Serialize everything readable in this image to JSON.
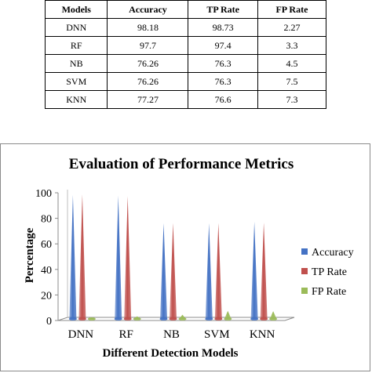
{
  "table": {
    "headers": [
      "Models",
      "Accuracy",
      "TP Rate",
      "FP Rate"
    ],
    "rows": [
      [
        "DNN",
        "98.18",
        "98.73",
        "2.27"
      ],
      [
        "RF",
        "97.7",
        "97.4",
        "3.3"
      ],
      [
        "NB",
        "76.26",
        "76.3",
        "4.5"
      ],
      [
        "SVM",
        "76.26",
        "76.3",
        "7.5"
      ],
      [
        "KNN",
        "77.27",
        "76.6",
        "7.3"
      ]
    ]
  },
  "chart_data": {
    "type": "bar",
    "title": "Evaluation of Performance Metrics",
    "xlabel": "Different Detection Models",
    "ylabel": "Percentage",
    "categories": [
      "DNN",
      "RF",
      "NB",
      "SVM",
      "KNN"
    ],
    "ylim": [
      0,
      100
    ],
    "yticks": [
      0,
      20,
      40,
      60,
      80,
      100
    ],
    "series": [
      {
        "name": "Accuracy",
        "values": [
          98.18,
          97.7,
          76.26,
          76.26,
          77.27
        ],
        "color": "#4472c4"
      },
      {
        "name": "TP Rate",
        "values": [
          98.73,
          97.4,
          76.3,
          76.3,
          76.6
        ],
        "color": "#c0504d"
      },
      {
        "name": "FP Rate",
        "values": [
          2.27,
          3.3,
          4.5,
          7.5,
          7.3
        ],
        "color": "#9bbb59"
      }
    ],
    "bar_shape": "cone-3d",
    "grid": false,
    "legend_position": "right"
  }
}
